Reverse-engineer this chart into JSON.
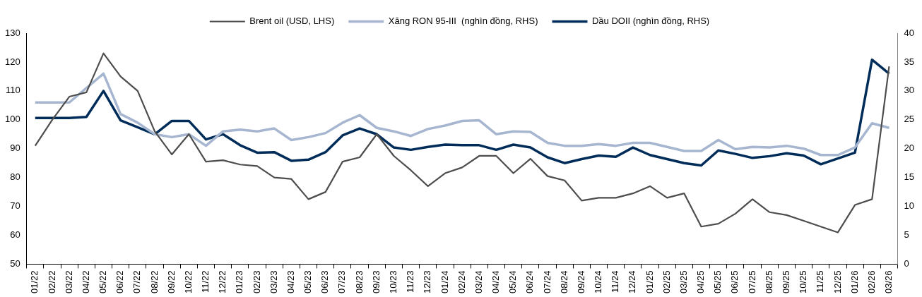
{
  "chart_data": {
    "type": "line",
    "categories": [
      "01/22",
      "02/22",
      "03/22",
      "04/22",
      "05/22",
      "06/22",
      "07/22",
      "08/22",
      "09/22",
      "10/22",
      "11/22",
      "12/22",
      "01/23",
      "02/23",
      "03/23",
      "04/23",
      "05/23",
      "06/23",
      "07/23",
      "08/23",
      "09/23",
      "10/23",
      "11/23",
      "12/23",
      "01/24",
      "02/24",
      "03/24",
      "04/24",
      "05/24",
      "06/24",
      "07/24",
      "08/24",
      "09/24",
      "10/24",
      "11/24",
      "12/24",
      "01/25",
      "02/25",
      "03/25",
      "04/25",
      "05/25",
      "06/25",
      "07/25",
      "08/25",
      "09/25",
      "10/25",
      "11/25",
      "12/25",
      "01/26",
      "02/26",
      "03/26"
    ],
    "series": [
      {
        "name": "Brent oil (USD, LHS)",
        "color": "#4d4d4d",
        "axis": "y",
        "values": [
          91,
          100,
          108,
          109.5,
          123,
          115,
          110,
          96,
          88,
          95,
          85.5,
          86,
          84.5,
          84,
          80,
          79.5,
          72.5,
          75,
          85.5,
          87,
          95,
          87.5,
          82.5,
          77,
          81.5,
          83.5,
          87.5,
          87.5,
          81.5,
          86.5,
          80.5,
          79,
          72,
          73,
          73,
          74.5,
          77,
          73,
          74.5,
          63,
          64,
          67.5,
          72.5,
          68,
          67,
          65,
          63,
          61,
          70.5,
          72.5,
          118.5
        ]
      },
      {
        "name": "Xăng RON 95-III  (nghìn đồng, RHS)",
        "color": "#a6b6d0",
        "axis": "y2",
        "values": [
          28,
          28,
          28,
          30.5,
          33,
          26,
          24.5,
          22.5,
          22,
          22.5,
          20.5,
          23,
          23.3,
          23,
          23.5,
          21.5,
          22,
          22.7,
          24.5,
          25.8,
          23.6,
          23,
          22.2,
          23.4,
          24,
          24.8,
          24.9,
          22.5,
          23,
          22.9,
          21,
          20.5,
          20.5,
          20.8,
          20.5,
          21,
          21,
          20.3,
          19.6,
          19.6,
          21.5,
          19.9,
          20.3,
          20.2,
          20.5,
          20,
          18.9,
          18.9,
          20.2,
          24.4,
          23.6
        ]
      },
      {
        "name": "Dầu DOII (nghìn đồng, RHS)",
        "color": "#002c5a",
        "axis": "y2",
        "values": [
          25.3,
          25.3,
          25.3,
          25.5,
          30,
          24.9,
          23.7,
          22.5,
          24.8,
          24.8,
          21.6,
          22.5,
          20.6,
          19.3,
          19.4,
          17.9,
          18.1,
          19.4,
          22.3,
          23.5,
          22.5,
          20.2,
          19.8,
          20.3,
          20.7,
          20.6,
          20.6,
          19.8,
          20.7,
          20.2,
          18.5,
          17.5,
          18.2,
          18.8,
          18.6,
          20.2,
          18.9,
          18.2,
          17.5,
          17.1,
          19.7,
          19.1,
          18.4,
          18.7,
          19.2,
          18.8,
          17.3,
          18.3,
          19.3,
          35.4,
          33
        ]
      }
    ],
    "ylim": [
      50,
      130
    ],
    "yticks": [
      50,
      60,
      70,
      80,
      90,
      100,
      110,
      120,
      130
    ],
    "y2lim": [
      0,
      40
    ],
    "y2ticks": [
      0,
      5,
      10,
      15,
      20,
      25,
      30,
      35,
      40
    ],
    "grid": false,
    "legend": "top",
    "marker": "none",
    "line_style": "solid"
  }
}
